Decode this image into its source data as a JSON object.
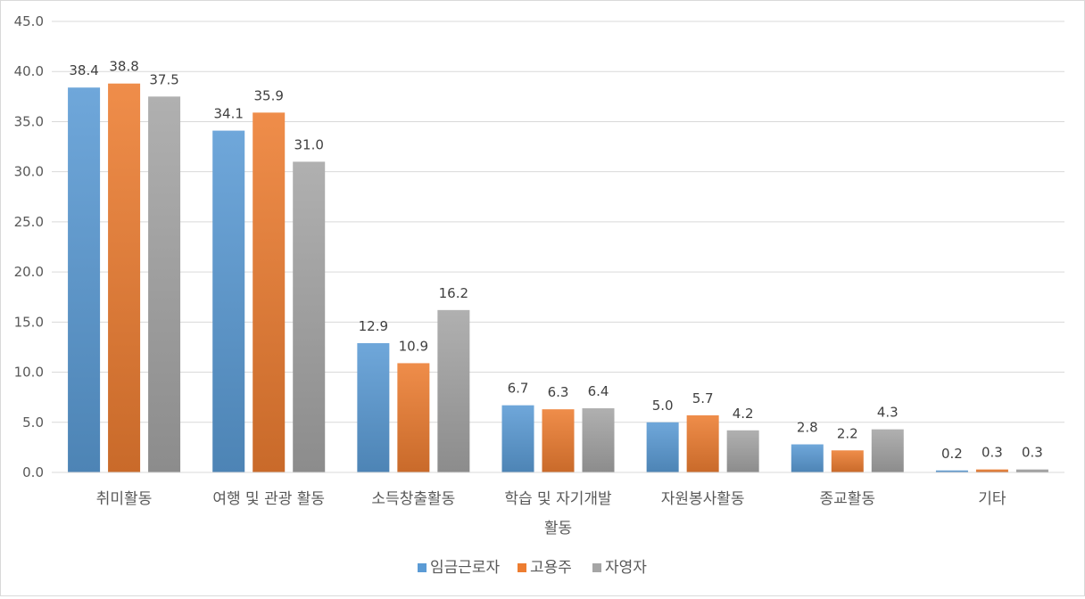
{
  "chart_data": {
    "type": "bar",
    "title": "",
    "xlabel": "",
    "ylabel": "",
    "ylim": [
      0,
      45
    ],
    "ytick_step": 5,
    "ytick_labels": [
      "0.0",
      "5.0",
      "10.0",
      "15.0",
      "20.0",
      "25.0",
      "30.0",
      "35.0",
      "40.0",
      "45.0"
    ],
    "grid": true,
    "legend_position": "bottom",
    "categories": [
      [
        "취미활동"
      ],
      [
        "여행 및 관광 활동"
      ],
      [
        "소득창출활동"
      ],
      [
        "학습 및 자기개발",
        "활동"
      ],
      [
        "자원봉사활동"
      ],
      [
        "종교활동"
      ],
      [
        "기타"
      ]
    ],
    "series": [
      {
        "name": "임금근로자",
        "color": "#5B9BD5",
        "values": [
          38.4,
          34.1,
          12.9,
          6.7,
          5.0,
          2.8,
          0.2
        ],
        "labels": [
          "38.4",
          "34.1",
          "12.9",
          "6.7",
          "5.0",
          "2.8",
          "0.2"
        ]
      },
      {
        "name": "고용주",
        "color": "#ED7D31",
        "values": [
          38.8,
          35.9,
          10.9,
          6.3,
          5.7,
          2.2,
          0.3
        ],
        "labels": [
          "38.8",
          "35.9",
          "10.9",
          "6.3",
          "5.7",
          "2.2",
          "0.3"
        ]
      },
      {
        "name": "자영자",
        "color": "#A5A5A5",
        "values": [
          37.5,
          31.0,
          16.2,
          6.4,
          4.2,
          4.3,
          0.3
        ],
        "labels": [
          "37.5",
          "31.0",
          "16.2",
          "6.4",
          "4.2",
          "4.3",
          "0.3"
        ]
      }
    ]
  }
}
